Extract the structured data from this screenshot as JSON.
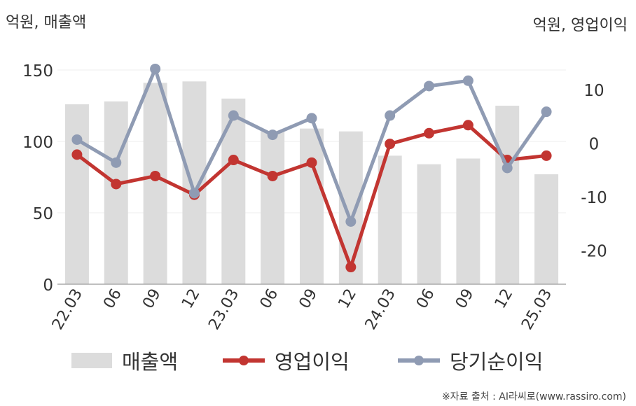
{
  "labels": {
    "unit_left": "억원, 매출액",
    "unit_right": "억원, 영업이익",
    "source": "※자료 출처 : AI라씨로(www.rassiro.com)"
  },
  "chart_data": {
    "type": "bar",
    "categories": [
      "22.03",
      "06",
      "09",
      "12",
      "23.03",
      "06",
      "09",
      "12",
      "24.03",
      "06",
      "09",
      "12",
      "25.03"
    ],
    "series": [
      {
        "name": "매출액",
        "type": "bar",
        "axis": "left",
        "color": "#dcdcdc",
        "values": [
          126,
          128,
          141,
          142,
          130,
          107,
          109,
          107,
          90,
          84,
          88,
          125,
          77
        ]
      },
      {
        "name": "영업이익",
        "type": "line",
        "axis": "right",
        "color": "#c23531",
        "values": [
          -2,
          -7.5,
          -6,
          -9.5,
          -3,
          -6,
          -3.5,
          -23,
          0,
          2,
          3.5,
          -3,
          -2.2
        ]
      },
      {
        "name": "당기순이익",
        "type": "line",
        "axis": "right",
        "color": "#8f9bb3",
        "values": [
          0.8,
          -3.5,
          14,
          -9.2,
          5.3,
          1.7,
          4.8,
          -14.5,
          5.3,
          10.8,
          11.8,
          -4.5,
          6
        ]
      }
    ],
    "y_left": {
      "range": [
        0,
        150
      ],
      "ticks": [
        0,
        50,
        100,
        150
      ]
    },
    "y_right": {
      "range": [
        -26.2,
        13.8
      ],
      "ticks": [
        -20,
        -10,
        0,
        10
      ]
    },
    "grid": true,
    "legend_position": "bottom"
  }
}
